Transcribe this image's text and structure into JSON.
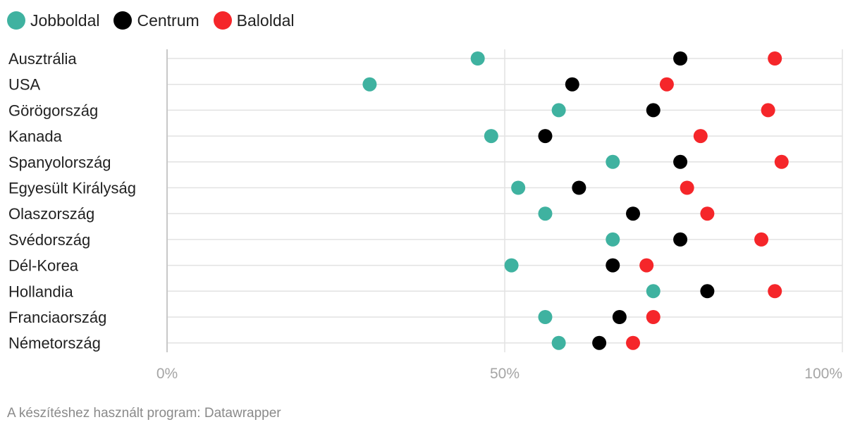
{
  "chart_data": {
    "type": "scatter",
    "series": [
      {
        "name": "Jobboldal",
        "color": "#3fb2a0",
        "values": [
          46,
          30,
          58,
          48,
          66,
          52,
          56,
          66,
          51,
          72,
          56,
          58
        ]
      },
      {
        "name": "Centrum",
        "color": "#000000",
        "values": [
          76,
          60,
          72,
          56,
          76,
          61,
          69,
          76,
          66,
          80,
          67,
          64
        ]
      },
      {
        "name": "Baloldal",
        "color": "#f5262a",
        "values": [
          90,
          74,
          89,
          79,
          91,
          77,
          80,
          88,
          71,
          90,
          72,
          69
        ]
      }
    ],
    "categories": [
      "Ausztrália",
      "USA",
      "Görögország",
      "Kanada",
      "Spanyolország",
      "Egyesült Királyság",
      "Olaszország",
      "Svédország",
      "Dél-Korea",
      "Hollandia",
      "Franciaország",
      "Németország"
    ],
    "x_ticks": [
      "0%",
      "50%",
      "100%"
    ],
    "xlim": [
      0,
      100
    ],
    "grid": true,
    "legend_position": "top-left"
  },
  "footer": {
    "note": "A készítéshez használt program: Datawrapper"
  }
}
